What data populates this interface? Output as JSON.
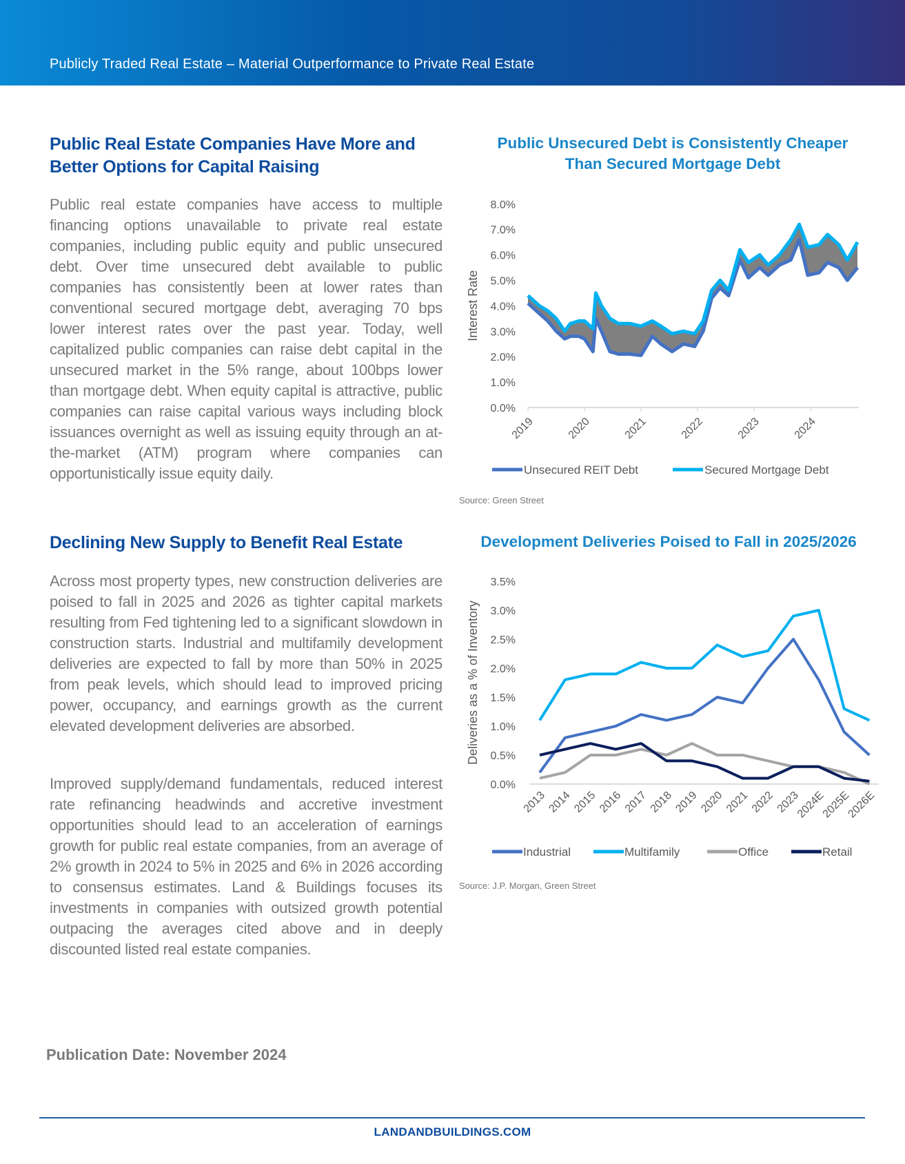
{
  "header": {
    "title": "Publicly Traded Real Estate – Material Outperformance to Private Real Estate"
  },
  "section1": {
    "heading": [
      "Public Real Estate Companies Have More and",
      "Better Options for Capital Raising"
    ],
    "body": "Public real estate companies have access to multiple financing options unavailable to private real estate companies, including public equity and public unsecured debt. Over time unsecured debt available to public companies has consistently been at lower rates than conventional secured mortgage debt, averaging 70 bps lower interest rates over the past year. Today, well capitalized public companies can raise debt capital in the unsecured market in the 5% range, about 100bps lower than mortgage debt. When equity capital is attractive, public companies can raise capital various ways including block issuances overnight as well as issuing equity through an at-the-market (ATM) program where companies can opportunistically issue equity daily."
  },
  "section2": {
    "heading": "Declining New Supply to Benefit Real Estate",
    "body1": "Across most property types, new construction deliveries are poised to fall in 2025 and 2026 as tighter capital markets resulting from Fed tightening led to a significant slowdown in construction starts. Industrial and multifamily development deliveries are expected to fall by more than 50% in 2025 from peak levels, which should lead to improved pricing power, occupancy, and earnings growth as the current elevated development deliveries are absorbed.",
    "body2": "Improved supply/demand fundamentals, reduced interest rate refinancing headwinds and accretive investment opportunities should lead to an acceleration of earnings growth for public real estate companies, from an average of 2% growth in 2024 to 5% in 2025 and 6% in 2026 according to consensus estimates. Land & Buildings focuses its investments in companies with outsized growth potential outpacing the averages cited above and in deeply discounted listed real estate companies."
  },
  "publication_date": "Publication Date: November 2024",
  "footer": {
    "site": "LANDANDBUILDINGS.COM"
  },
  "chart_data": [
    {
      "type": "area",
      "title": [
        "Public Unsecured Debt is Consistently Cheaper",
        "Than Secured Mortgage Debt"
      ],
      "ylabel": "Interest Rate",
      "xlabel": "",
      "ylim": [
        0,
        8
      ],
      "yticks": [
        "0.0%",
        "1.0%",
        "2.0%",
        "3.0%",
        "4.0%",
        "5.0%",
        "6.0%",
        "7.0%",
        "8.0%"
      ],
      "xticks": [
        "2019",
        "2020",
        "2021",
        "2022",
        "2023",
        "2024"
      ],
      "x": [
        2019.0,
        2019.1,
        2019.2,
        2019.35,
        2019.5,
        2019.65,
        2019.75,
        2019.9,
        2020.0,
        2020.15,
        2020.2,
        2020.3,
        2020.45,
        2020.6,
        2020.8,
        2021.0,
        2021.2,
        2021.35,
        2021.55,
        2021.75,
        2021.95,
        2022.1,
        2022.25,
        2022.4,
        2022.55,
        2022.75,
        2022.9,
        2023.1,
        2023.25,
        2023.45,
        2023.65,
        2023.8,
        2023.95,
        2024.15,
        2024.3,
        2024.5,
        2024.65,
        2024.83
      ],
      "series": [
        {
          "name": "Unsecured REIT Debt",
          "color": "#4472c4",
          "values": [
            4.1,
            3.9,
            3.7,
            3.4,
            3.0,
            2.7,
            2.8,
            2.8,
            2.7,
            2.2,
            3.5,
            3.0,
            2.2,
            2.1,
            2.1,
            2.05,
            2.8,
            2.5,
            2.2,
            2.5,
            2.4,
            3.0,
            4.3,
            4.7,
            4.4,
            5.8,
            5.1,
            5.5,
            5.2,
            5.6,
            5.8,
            6.6,
            5.2,
            5.3,
            5.7,
            5.5,
            5.0,
            5.5
          ]
        },
        {
          "name": "Secured Mortgage Debt",
          "color": "#00b0f0",
          "values": [
            4.4,
            4.2,
            4.0,
            3.8,
            3.5,
            3.0,
            3.3,
            3.4,
            3.4,
            3.1,
            4.5,
            4.0,
            3.5,
            3.3,
            3.3,
            3.2,
            3.4,
            3.2,
            2.9,
            3.0,
            2.9,
            3.4,
            4.6,
            5.0,
            4.6,
            6.2,
            5.7,
            6.0,
            5.6,
            6.0,
            6.6,
            7.2,
            6.3,
            6.4,
            6.8,
            6.4,
            5.8,
            6.5
          ]
        }
      ],
      "band_color": "#808080",
      "legend": "bottom",
      "source": "Source: Green Street"
    },
    {
      "type": "line",
      "title": "Development Deliveries Poised to Fall in 2025/2026",
      "ylabel": "Deliveries as a % of Inventory",
      "xlabel": "",
      "ylim": [
        0,
        3.5
      ],
      "yticks": [
        "0.0%",
        "0.5%",
        "1.0%",
        "1.5%",
        "2.0%",
        "2.5%",
        "3.0%",
        "3.5%"
      ],
      "categories": [
        "2013",
        "2014",
        "2015",
        "2016",
        "2017",
        "2018",
        "2019",
        "2020",
        "2021",
        "2022",
        "2023",
        "2024E",
        "2025E",
        "2026E"
      ],
      "series": [
        {
          "name": "Industrial",
          "color": "#4472c4",
          "values": [
            0.2,
            0.8,
            0.9,
            1.0,
            1.2,
            1.1,
            1.2,
            1.5,
            1.4,
            2.0,
            2.5,
            1.8,
            0.9,
            0.5
          ]
        },
        {
          "name": "Multifamily",
          "color": "#00b0f0",
          "values": [
            1.1,
            1.8,
            1.9,
            1.9,
            2.1,
            2.0,
            2.0,
            2.4,
            2.2,
            2.3,
            2.9,
            3.0,
            1.3,
            1.1
          ]
        },
        {
          "name": "Office",
          "color": "#a5a5a5",
          "values": [
            0.1,
            0.2,
            0.5,
            0.5,
            0.6,
            0.5,
            0.7,
            0.5,
            0.5,
            0.4,
            0.3,
            0.3,
            0.2,
            0.0
          ]
        },
        {
          "name": "Retail",
          "color": "#0b1f5c",
          "values": [
            0.5,
            0.6,
            0.7,
            0.6,
            0.7,
            0.4,
            0.4,
            0.3,
            0.1,
            0.1,
            0.3,
            0.3,
            0.1,
            0.05
          ]
        }
      ],
      "legend": "bottom",
      "source": "Source: J.P. Morgan, Green Street"
    }
  ]
}
